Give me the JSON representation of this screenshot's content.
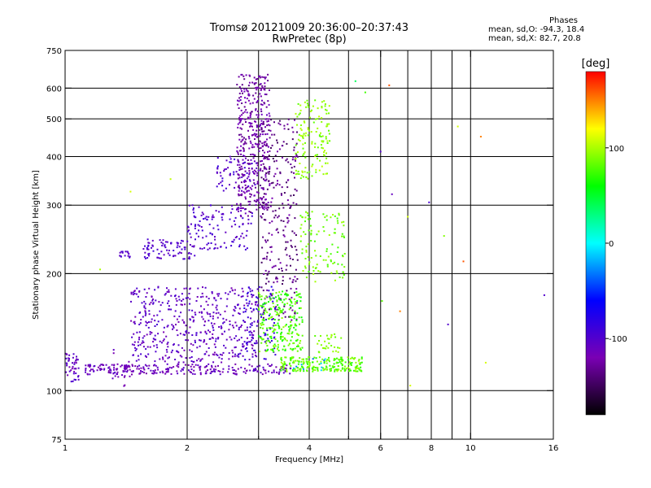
{
  "header": {
    "title_line1": "Tromsø 20121009 20:36:00–20:37:43",
    "title_line2": "RwPretec (8p)"
  },
  "stats": {
    "heading": "Phases",
    "line_o": "mean, sd,O: -94.3, 18.4",
    "line_x": "mean, sd,X:  82.7, 20.8"
  },
  "chart_data": {
    "type": "scatter",
    "xlabel": "Frequency [MHz]",
    "ylabel": "Stationary phase Virtual Height [km]",
    "x_scale": "log",
    "y_scale": "log",
    "xlim": [
      1,
      16
    ],
    "ylim": [
      75,
      750
    ],
    "x_ticks": [
      1,
      2,
      4,
      6,
      8,
      10,
      16
    ],
    "x_major_grid": [
      2,
      3,
      4,
      5,
      6,
      7,
      8,
      9,
      10
    ],
    "x_minor_ticks": [
      3,
      5,
      7,
      9
    ],
    "y_ticks": [
      75,
      100,
      200,
      300,
      400,
      500,
      600,
      750
    ],
    "y_major_grid": [
      100,
      200,
      300,
      400,
      500,
      600
    ],
    "grid": true,
    "colorbar": {
      "label": "[deg]",
      "min": -180,
      "max": 180,
      "ticks": [
        100,
        0,
        -100
      ],
      "stops": [
        "#000000",
        "#7a00b4",
        "#0000ff",
        "#00ffff",
        "#00ff00",
        "#ffff00",
        "#ff0000"
      ]
    },
    "clusters": [
      {
        "f": [
          1.0,
          1.08
        ],
        "h": [
          105,
          125
        ],
        "phase": [
          -120,
          -95
        ],
        "n": 45
      },
      {
        "f": [
          1.12,
          3.6
        ],
        "h": [
          110,
          117
        ],
        "phase": [
          -125,
          -100
        ],
        "n": 260
      },
      {
        "f": [
          1.3,
          1.45
        ],
        "h": [
          100,
          132
        ],
        "phase": [
          -125,
          -105
        ],
        "n": 20
      },
      {
        "f": [
          1.45,
          3.0
        ],
        "h": [
          118,
          185
        ],
        "phase": [
          -120,
          -95
        ],
        "n": 480
      },
      {
        "f": [
          1.35,
          1.45
        ],
        "h": [
          220,
          228
        ],
        "phase": [
          -110,
          -95
        ],
        "n": 15
      },
      {
        "f": [
          1.55,
          2.1
        ],
        "h": [
          218,
          245
        ],
        "phase": [
          -110,
          -90
        ],
        "n": 80
      },
      {
        "f": [
          2.0,
          2.9
        ],
        "h": [
          230,
          300
        ],
        "phase": [
          -110,
          -90
        ],
        "n": 120
      },
      {
        "f": [
          2.35,
          3.0
        ],
        "h": [
          325,
          400
        ],
        "phase": [
          -110,
          -85
        ],
        "n": 60
      },
      {
        "f": [
          2.65,
          3.2
        ],
        "h": [
          280,
          650
        ],
        "phase": [
          -135,
          -110
        ],
        "n": 420
      },
      {
        "f": [
          3.05,
          3.75
        ],
        "h": [
          150,
          500
        ],
        "phase": [
          -150,
          -120
        ],
        "n": 260
      },
      {
        "f": [
          2.75,
          3.3
        ],
        "h": [
          120,
          185
        ],
        "phase": [
          -95,
          -75
        ],
        "n": 80
      },
      {
        "f": [
          3.0,
          3.85
        ],
        "h": [
          126,
          180
        ],
        "phase": [
          60,
          95
        ],
        "n": 240
      },
      {
        "f": [
          3.4,
          5.4
        ],
        "h": [
          112,
          122
        ],
        "phase": [
          65,
          100
        ],
        "n": 220
      },
      {
        "f": [
          3.7,
          4.5
        ],
        "h": [
          350,
          560
        ],
        "phase": [
          80,
          105
        ],
        "n": 140
      },
      {
        "f": [
          3.8,
          4.9
        ],
        "h": [
          190,
          290
        ],
        "phase": [
          75,
          100
        ],
        "n": 110
      },
      {
        "f": [
          4.1,
          4.8
        ],
        "h": [
          125,
          140
        ],
        "phase": [
          80,
          100
        ],
        "n": 30
      },
      {
        "f": [
          3.5,
          4.5
        ],
        "h": [
          112,
          122
        ],
        "phase": [
          -40,
          0
        ],
        "n": 10
      }
    ],
    "isolated_points": [
      {
        "x": 1.22,
        "y": 205,
        "phase": 100
      },
      {
        "x": 1.45,
        "y": 325,
        "phase": 110
      },
      {
        "x": 1.82,
        "y": 350,
        "phase": 105
      },
      {
        "x": 5.2,
        "y": 625,
        "phase": 40
      },
      {
        "x": 5.5,
        "y": 585,
        "phase": 75
      },
      {
        "x": 6.0,
        "y": 412,
        "phase": -100
      },
      {
        "x": 6.3,
        "y": 610,
        "phase": 160
      },
      {
        "x": 6.4,
        "y": 320,
        "phase": -110
      },
      {
        "x": 6.05,
        "y": 170,
        "phase": 80
      },
      {
        "x": 6.7,
        "y": 160,
        "phase": 150
      },
      {
        "x": 7.0,
        "y": 280,
        "phase": 110
      },
      {
        "x": 7.1,
        "y": 103,
        "phase": 110
      },
      {
        "x": 7.9,
        "y": 305,
        "phase": -95
      },
      {
        "x": 8.6,
        "y": 250,
        "phase": 90
      },
      {
        "x": 8.8,
        "y": 148,
        "phase": -100
      },
      {
        "x": 9.3,
        "y": 478,
        "phase": 110
      },
      {
        "x": 9.6,
        "y": 215,
        "phase": 160
      },
      {
        "x": 10.6,
        "y": 450,
        "phase": 150
      },
      {
        "x": 10.9,
        "y": 118,
        "phase": 110
      },
      {
        "x": 15.2,
        "y": 176,
        "phase": -100
      }
    ]
  }
}
